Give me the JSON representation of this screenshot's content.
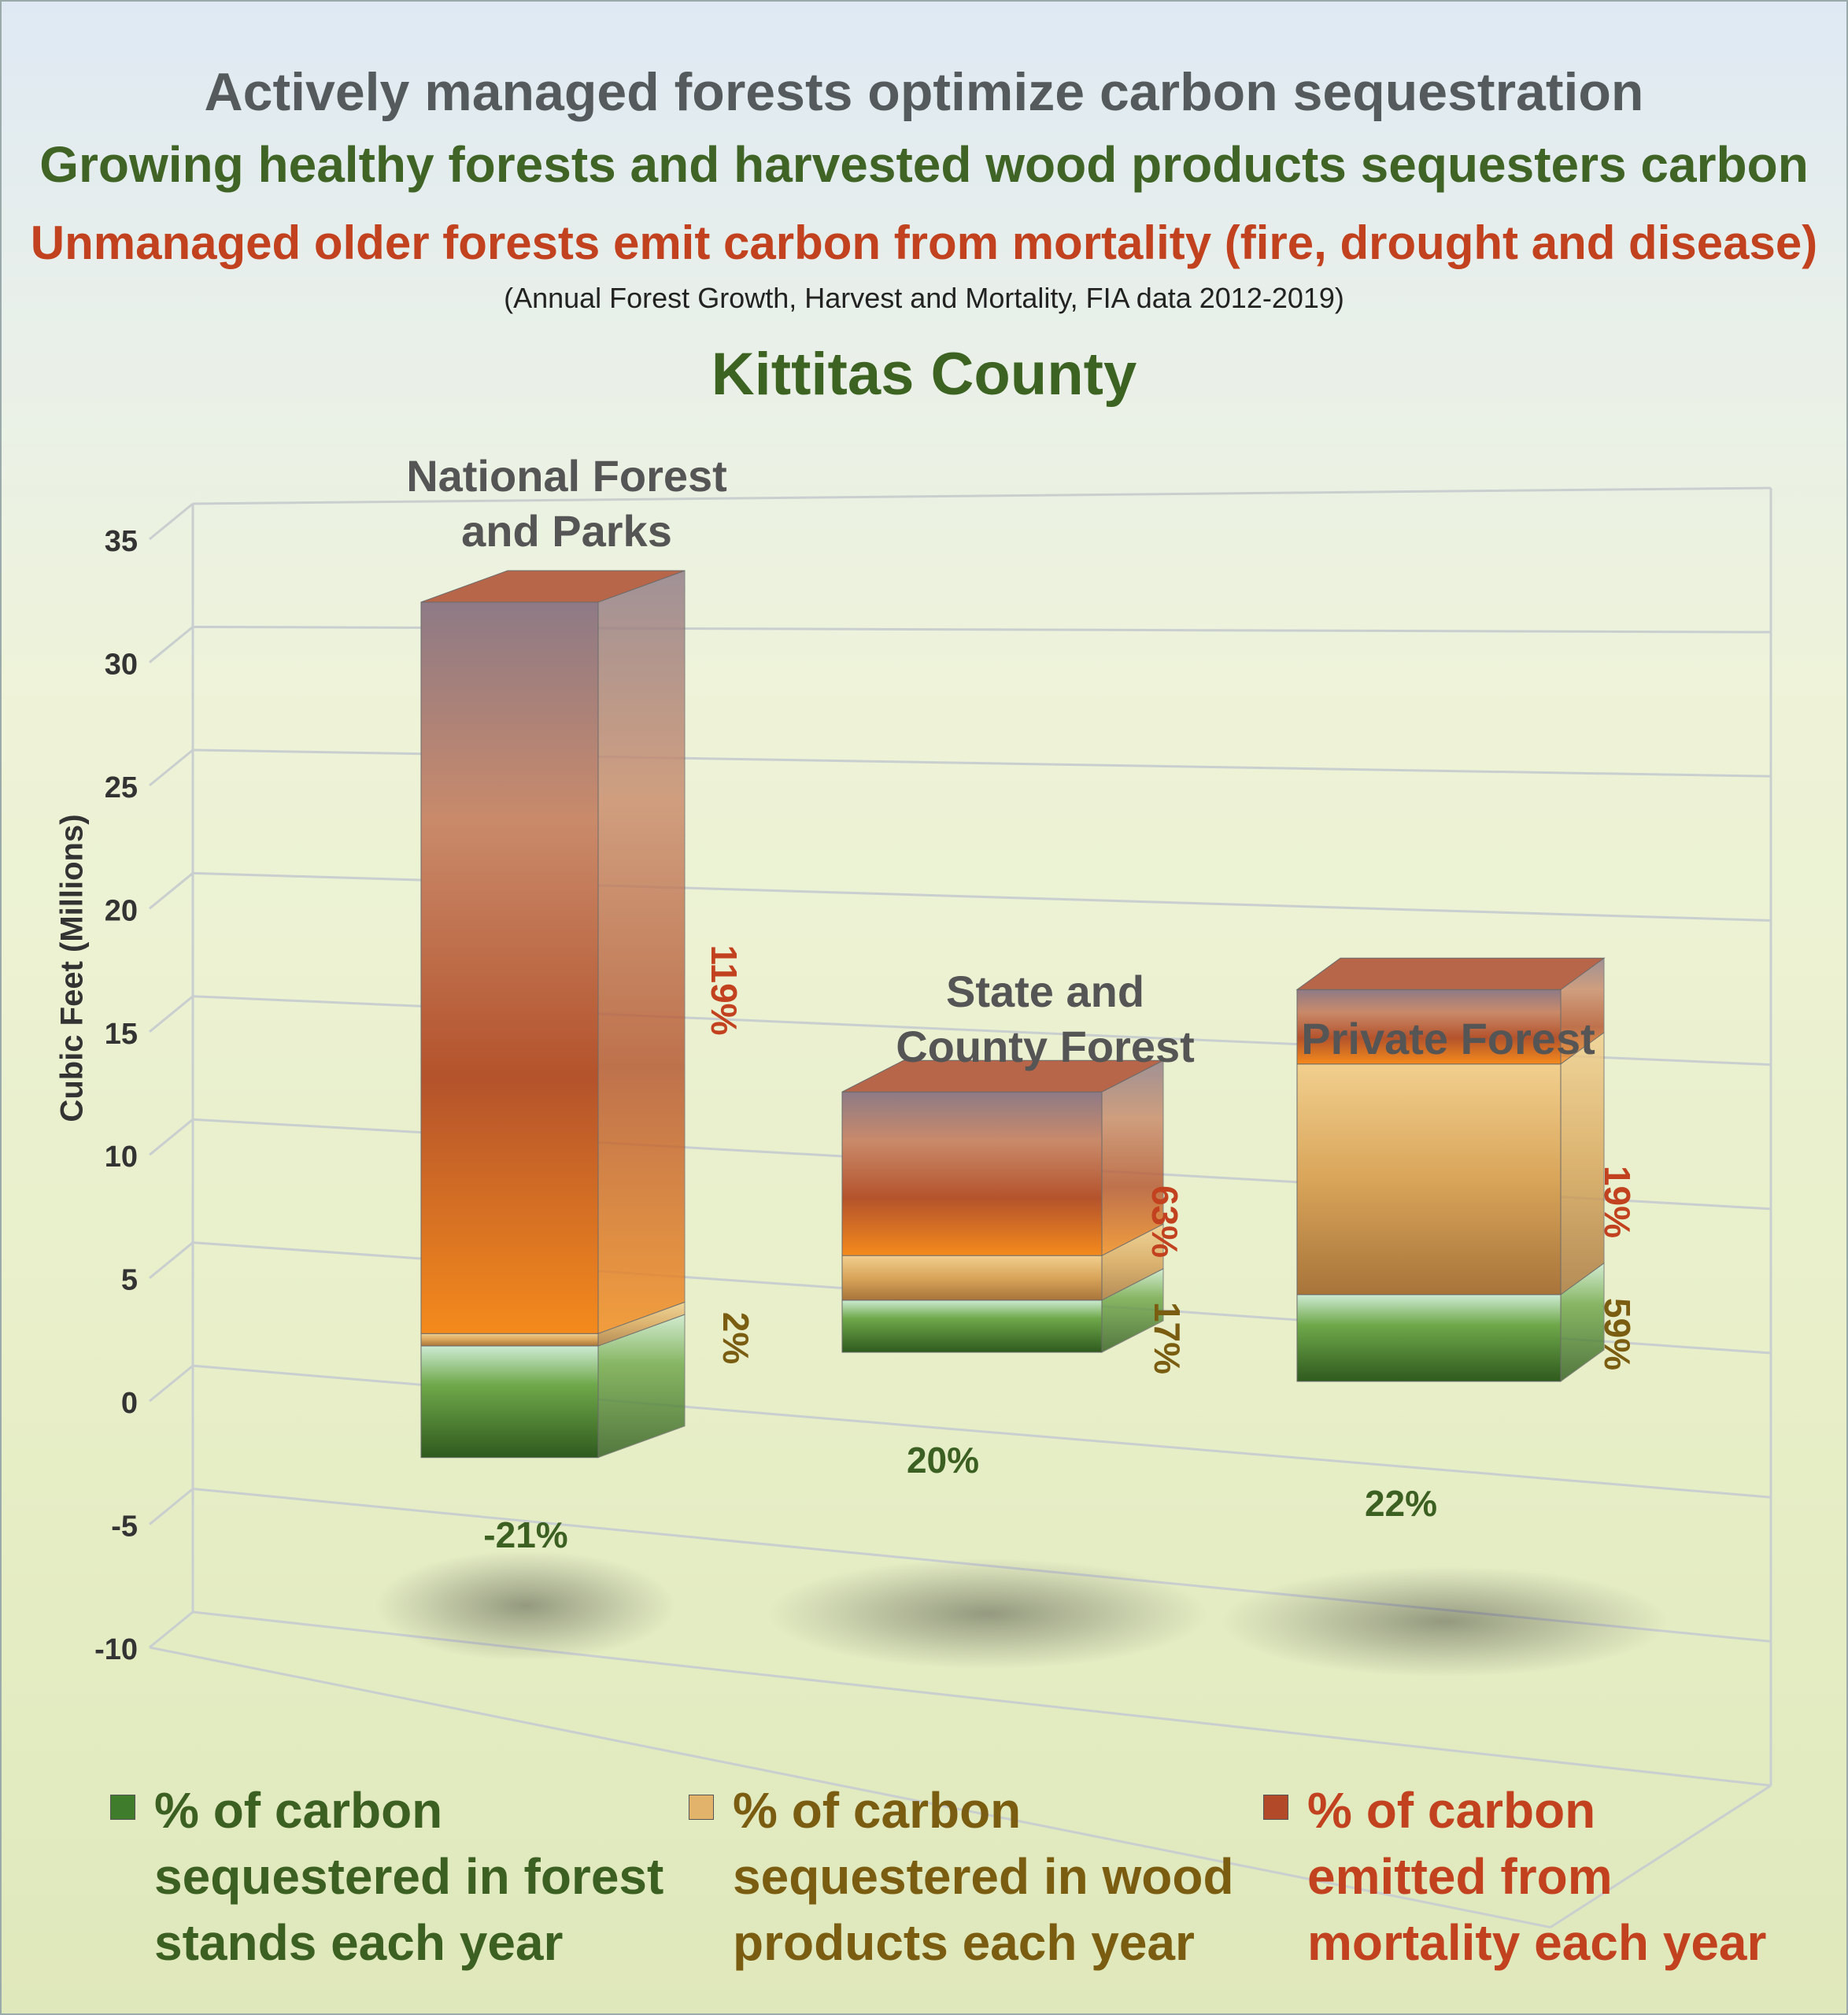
{
  "header": {
    "title": "Actively managed forests optimize carbon sequestration",
    "subtitle": "Growing healthy forests and harvested wood products sequesters carbon",
    "subtitle2": "Unmanaged older forests emit carbon from mortality (fire, drought and disease)",
    "source": "(Annual Forest Growth, Harvest and Mortality, FIA data 2012-2019)",
    "county": "Kittitas County"
  },
  "chart_data": {
    "type": "bar",
    "stacked": true,
    "style": "3d",
    "ylabel": "Cubic Feet (Millions)",
    "ylim": [
      -10,
      35
    ],
    "yticks": [
      "35",
      "30",
      "25",
      "20",
      "15",
      "10",
      "5",
      "0",
      "-5",
      "-10"
    ],
    "grid": true,
    "categories": [
      "National Forest and Parks",
      "State and County Forest",
      "Private Forest"
    ],
    "category_label_lines": [
      [
        "National Forest",
        "and Parks"
      ],
      [
        "State and",
        "County Forest"
      ],
      [
        "Private Forest"
      ]
    ],
    "series": [
      {
        "name": "% of carbon sequestered in forest stands each year",
        "values": [
          -4.5,
          2.1,
          3.5
        ],
        "labels": [
          "-21%",
          "20%",
          "22%"
        ],
        "color": "#4f8a34"
      },
      {
        "name": "% of carbon sequestered in wood products each year",
        "values": [
          0.5,
          1.8,
          9.3
        ],
        "labels": [
          "2%",
          "17%",
          "59%"
        ],
        "color": "#d9a55a"
      },
      {
        "name": "% of carbon emitted from mortality each year",
        "values": [
          29.5,
          6.6,
          3.0
        ],
        "labels": [
          "119%",
          "63%",
          "19%"
        ],
        "color": "#c8552a"
      }
    ]
  },
  "legend": [
    {
      "lines": [
        "% of carbon",
        "sequestered in forest",
        "stands each year"
      ],
      "color": "#3c5f22"
    },
    {
      "lines": [
        "% of carbon",
        "sequestered in wood",
        "products each year"
      ],
      "color": "#7a5d10"
    },
    {
      "lines": [
        "% of carbon",
        "emitted from",
        "mortality each year"
      ],
      "color": "#c2411e"
    }
  ]
}
